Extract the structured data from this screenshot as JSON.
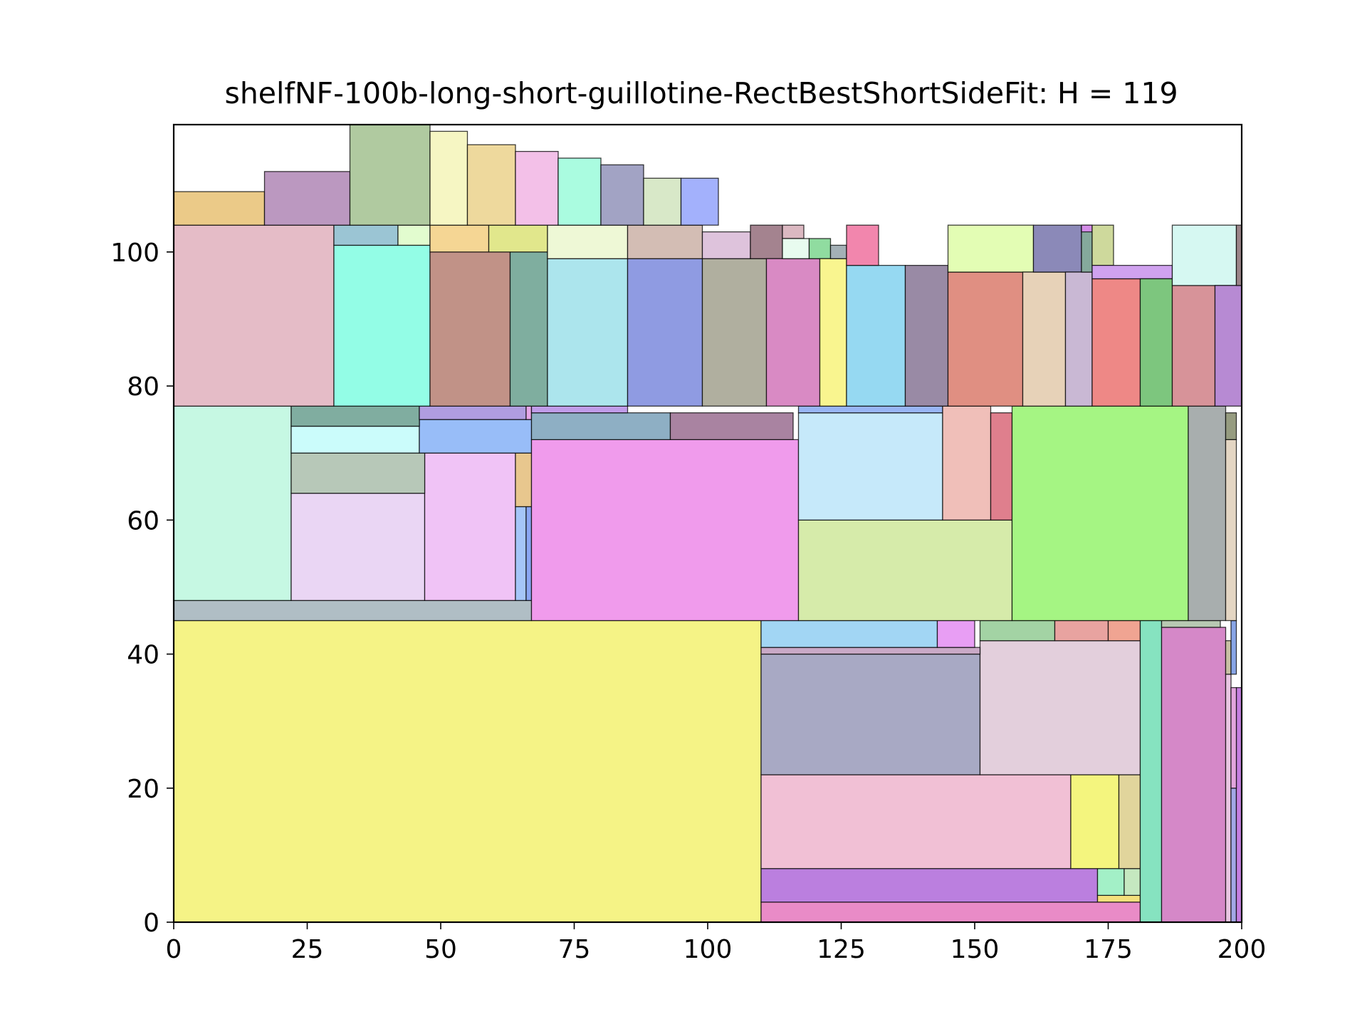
{
  "chart_data": {
    "type": "packing-rectangles",
    "title": "shelfNF-100b-long-short-guillotine-RectBestShortSideFit: H = 119",
    "xlabel": "",
    "ylabel": "",
    "xlim": [
      0,
      200
    ],
    "ylim": [
      0,
      119
    ],
    "x_ticks": [
      "0",
      "25",
      "50",
      "75",
      "100",
      "125",
      "150",
      "175",
      "200"
    ],
    "x_tick_values": [
      0,
      25,
      50,
      75,
      100,
      125,
      150,
      175,
      200
    ],
    "y_ticks": [
      "0",
      "20",
      "40",
      "60",
      "80",
      "100"
    ],
    "y_tick_values": [
      0,
      20,
      40,
      60,
      80,
      100
    ],
    "grid": false,
    "legend": "none",
    "rect_fields": [
      "x",
      "y",
      "w",
      "h",
      "color"
    ],
    "rects": [
      [
        0,
        0,
        110,
        45,
        "#f5f386"
      ],
      [
        110,
        0,
        71,
        3,
        "#e98bc7"
      ],
      [
        110,
        3,
        63,
        5,
        "#bb7fdf"
      ],
      [
        173,
        3,
        8,
        1,
        "#f4e07c"
      ],
      [
        173,
        4,
        5,
        4,
        "#a3f0c7"
      ],
      [
        178,
        4,
        3,
        4,
        "#c5e8c0"
      ],
      [
        110,
        8,
        58,
        14,
        "#f1c0d5"
      ],
      [
        168,
        8,
        9,
        14,
        "#f4f57e"
      ],
      [
        177,
        8,
        4,
        14,
        "#e1d59c"
      ],
      [
        110,
        22,
        41,
        18,
        "#a8a9c4"
      ],
      [
        151,
        22,
        30,
        20,
        "#e3cfdc"
      ],
      [
        110,
        40,
        41,
        1,
        "#c9a9c6"
      ],
      [
        110,
        41,
        33,
        4,
        "#a2d6f4"
      ],
      [
        143,
        41,
        7,
        4,
        "#e89ef4"
      ],
      [
        151,
        42,
        14,
        3,
        "#a3d3a4"
      ],
      [
        165,
        42,
        10,
        3,
        "#e8a3a0"
      ],
      [
        175,
        42,
        6,
        3,
        "#f0a492"
      ],
      [
        181,
        0,
        4,
        45,
        "#86e3c0"
      ],
      [
        185,
        0,
        12,
        44,
        "#d588c8"
      ],
      [
        185,
        44,
        11,
        1,
        "#b8c9b3"
      ],
      [
        197,
        0,
        1,
        37,
        "#e8c6e2"
      ],
      [
        197,
        37,
        1,
        5,
        "#c8c0a4"
      ],
      [
        198,
        0,
        1,
        20,
        "#a3a7e6"
      ],
      [
        199,
        0,
        1,
        35,
        "#c57fe0"
      ],
      [
        198,
        37,
        1,
        8,
        "#88a5e6"
      ],
      [
        198,
        20,
        1,
        15,
        "#e2a5dd"
      ],
      [
        0,
        45,
        67,
        3,
        "#b0bec5"
      ],
      [
        0,
        48,
        22,
        29,
        "#c6f8e3"
      ],
      [
        22,
        48,
        25,
        16,
        "#ead6f4"
      ],
      [
        47,
        48,
        17,
        22,
        "#f0c3f6"
      ],
      [
        64,
        48,
        2,
        14,
        "#a5c6f8"
      ],
      [
        66,
        48,
        1,
        14,
        "#8aa6f2"
      ],
      [
        64,
        62,
        3,
        8,
        "#e8c78e"
      ],
      [
        22,
        64,
        25,
        6,
        "#b7c8b8"
      ],
      [
        22,
        70,
        24,
        4,
        "#cbfcfb"
      ],
      [
        46,
        70,
        21,
        5,
        "#98bdf8"
      ],
      [
        22,
        74,
        24,
        3,
        "#80ada0"
      ],
      [
        46,
        75,
        20,
        2,
        "#b09de0"
      ],
      [
        66,
        75,
        1,
        2,
        "#e5a6e7"
      ],
      [
        67,
        45,
        50,
        27,
        "#f09bec"
      ],
      [
        67,
        72,
        26,
        4,
        "#8eafc4"
      ],
      [
        93,
        72,
        23,
        4,
        "#a983a1"
      ],
      [
        67,
        76,
        18,
        1,
        "#c09ce9"
      ],
      [
        117,
        45,
        40,
        15,
        "#d6ebaa"
      ],
      [
        117,
        60,
        27,
        16,
        "#c6e9fa"
      ],
      [
        117,
        76,
        27,
        1,
        "#98b5f5"
      ],
      [
        144,
        60,
        9,
        17,
        "#f0bfb9"
      ],
      [
        153,
        60,
        4,
        16,
        "#df7f8d"
      ],
      [
        157,
        45,
        33,
        32,
        "#a5f583"
      ],
      [
        190,
        45,
        7,
        32,
        "#a8aeae"
      ],
      [
        197,
        45,
        2,
        27,
        "#e4d6c3"
      ],
      [
        197,
        72,
        2,
        4,
        "#969c80"
      ],
      [
        0,
        77,
        30,
        27,
        "#e5bcc7"
      ],
      [
        30,
        77,
        18,
        24,
        "#93fde6"
      ],
      [
        30,
        101,
        12,
        3,
        "#9bc5d4"
      ],
      [
        42,
        101,
        6,
        3,
        "#e2fccf"
      ],
      [
        48,
        77,
        15,
        23,
        "#c19287"
      ],
      [
        48,
        100,
        11,
        4,
        "#f5d694"
      ],
      [
        63,
        77,
        7,
        23,
        "#7fae9f"
      ],
      [
        59,
        100,
        11,
        4,
        "#e1e78c"
      ],
      [
        70,
        77,
        15,
        22,
        "#ace5ed"
      ],
      [
        70,
        99,
        15,
        5,
        "#eef8d6"
      ],
      [
        85,
        77,
        14,
        22,
        "#8f9be2"
      ],
      [
        85,
        99,
        14,
        5,
        "#d3bdb4"
      ],
      [
        99,
        77,
        12,
        22,
        "#b0af9f"
      ],
      [
        99,
        99,
        9,
        4,
        "#dec3dc"
      ],
      [
        108,
        99,
        6,
        5,
        "#a4838f"
      ],
      [
        114,
        102,
        4,
        2,
        "#dbb8c1"
      ],
      [
        111,
        77,
        10,
        22,
        "#d98ac4"
      ],
      [
        114,
        99,
        5,
        3,
        "#e8fbef"
      ],
      [
        119,
        99,
        4,
        3,
        "#90dca0"
      ],
      [
        121,
        77,
        5,
        22,
        "#f9f58f"
      ],
      [
        123,
        99,
        3,
        2,
        "#a3b0b6"
      ],
      [
        126,
        77,
        11,
        21,
        "#96d9f2"
      ],
      [
        126,
        98,
        6,
        6,
        "#f286ad"
      ],
      [
        137,
        77,
        8,
        21,
        "#998aa5"
      ],
      [
        145,
        77,
        14,
        20,
        "#e08f82"
      ],
      [
        145,
        97,
        16,
        7,
        "#e3fdb4"
      ],
      [
        159,
        77,
        8,
        20,
        "#e7d2b8"
      ],
      [
        161,
        97,
        9,
        7,
        "#8b89b8"
      ],
      [
        167,
        77,
        5,
        20,
        "#c9b8d4"
      ],
      [
        170,
        97,
        2,
        7,
        "#85a99c"
      ],
      [
        170,
        103,
        2,
        1,
        "#d48ce8"
      ],
      [
        172,
        98,
        4,
        6,
        "#ced99c"
      ],
      [
        172,
        77,
        9,
        19,
        "#ee8886"
      ],
      [
        172,
        96,
        15,
        2,
        "#d0a2ef"
      ],
      [
        181,
        77,
        6,
        19,
        "#7dc67e"
      ],
      [
        187,
        77,
        8,
        18,
        "#d79399"
      ],
      [
        187,
        95,
        12,
        9,
        "#d6f8f2"
      ],
      [
        195,
        77,
        5,
        18,
        "#b78ad3"
      ],
      [
        199,
        95,
        1,
        9,
        "#9b8589"
      ],
      [
        0,
        104,
        17,
        5,
        "#ebca88"
      ],
      [
        17,
        104,
        16,
        8,
        "#bb98c0"
      ],
      [
        33,
        104,
        15,
        15,
        "#b0caa0"
      ],
      [
        48,
        104,
        7,
        14,
        "#f6f6c3"
      ],
      [
        55,
        104,
        9,
        12,
        "#eed99d"
      ],
      [
        64,
        104,
        8,
        11,
        "#f3c0e8"
      ],
      [
        72,
        104,
        8,
        10,
        "#aafce0"
      ],
      [
        80,
        104,
        8,
        9,
        "#a2a3c4"
      ],
      [
        88,
        104,
        7,
        7,
        "#d8e8c8"
      ],
      [
        95,
        104,
        7,
        7,
        "#a3b1fc"
      ]
    ]
  }
}
